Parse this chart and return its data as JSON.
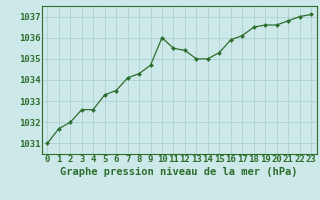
{
  "x": [
    0,
    1,
    2,
    3,
    4,
    5,
    6,
    7,
    8,
    9,
    10,
    11,
    12,
    13,
    14,
    15,
    16,
    17,
    18,
    19,
    20,
    21,
    22,
    23
  ],
  "y": [
    1031.0,
    1031.7,
    1032.0,
    1032.6,
    1032.6,
    1033.3,
    1033.5,
    1034.1,
    1034.3,
    1034.7,
    1036.0,
    1035.5,
    1035.4,
    1035.0,
    1035.0,
    1035.3,
    1035.9,
    1036.1,
    1036.5,
    1036.6,
    1036.6,
    1036.8,
    1037.0,
    1037.1
  ],
  "line_color": "#2d6e2d",
  "marker_color": "#2d6e2d",
  "bg_color": "#cce8e8",
  "grid_color": "#a8cccc",
  "axis_color": "#2d6e2d",
  "tick_color": "#2d6e2d",
  "xlabel": "Graphe pression niveau de la mer (hPa)",
  "xlabel_color": "#2d6e2d",
  "ylim": [
    1030.5,
    1037.5
  ],
  "yticks": [
    1031,
    1032,
    1033,
    1034,
    1035,
    1036,
    1037
  ],
  "xticks": [
    0,
    1,
    2,
    3,
    4,
    5,
    6,
    7,
    8,
    9,
    10,
    11,
    12,
    13,
    14,
    15,
    16,
    17,
    18,
    19,
    20,
    21,
    22,
    23
  ],
  "font_size_xlabel": 7.5,
  "font_size_ticks": 6.5
}
